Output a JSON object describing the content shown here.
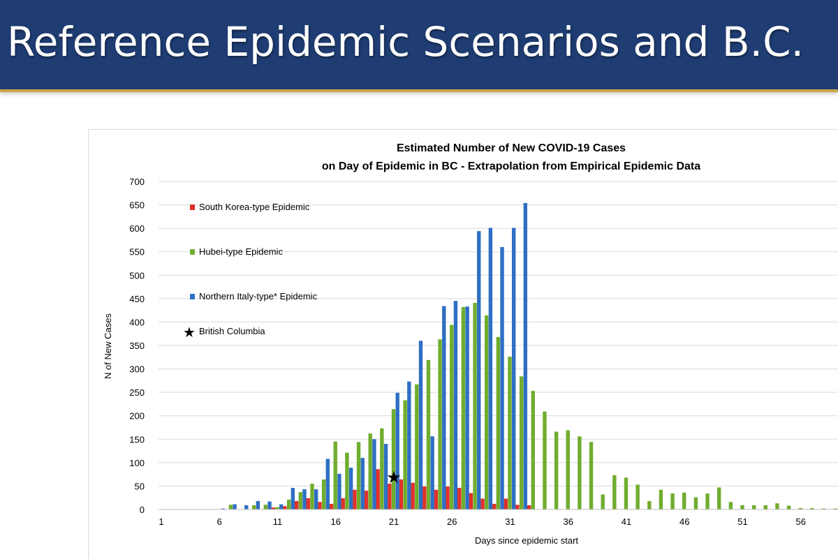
{
  "slide": {
    "title": "Reference Epidemic Scenarios and B.C."
  },
  "colors": {
    "banner": "#1f3d73",
    "banner_accent": "#c9a64a",
    "south_korea": "#e0312b",
    "hubei": "#70ad2e",
    "northern_italy": "#2e6fc4",
    "gridline": "#d9d9d9"
  },
  "chart_data": {
    "type": "bar",
    "title_line1": "Estimated Number of New COVID-19 Cases",
    "title_line2": "on Day of Epidemic in BC  - Extrapolation from Empirical Epidemic Data",
    "xlabel": "Days since epidemic start",
    "ylabel": "N of New Cases",
    "ylim": [
      0,
      700
    ],
    "y_ticks": [
      0,
      50,
      100,
      150,
      200,
      250,
      300,
      350,
      400,
      450,
      500,
      550,
      600,
      650,
      700
    ],
    "x_ticks": [
      "1",
      "6",
      "11",
      "16",
      "21",
      "26",
      "31",
      "36",
      "41",
      "46",
      "51",
      "56"
    ],
    "x_range": [
      1,
      59
    ],
    "grid": true,
    "legend_placement": "top-left",
    "series": [
      {
        "name": "South Korea-type Epidemic",
        "color": "#e0312b",
        "x": [
          11,
          12,
          13,
          14,
          15,
          16,
          17,
          18,
          19,
          20,
          21,
          22,
          23,
          24,
          25,
          26,
          27,
          28,
          29,
          30,
          31,
          32,
          33
        ],
        "values": [
          4,
          7,
          18,
          24,
          16,
          12,
          24,
          42,
          40,
          86,
          55,
          64,
          57,
          49,
          42,
          49,
          46,
          35,
          23,
          12,
          23,
          10,
          9
        ]
      },
      {
        "name": "Hubei-type Epidemic",
        "color": "#70ad2e",
        "x": [
          7,
          9,
          10,
          11,
          12,
          13,
          14,
          15,
          16,
          17,
          18,
          19,
          20,
          21,
          22,
          23,
          24,
          25,
          26,
          27,
          28,
          29,
          30,
          31,
          32,
          33,
          34,
          35,
          36,
          37,
          38,
          39,
          40,
          41,
          42,
          43,
          44,
          45,
          46,
          47,
          48,
          49,
          50,
          51,
          52,
          53,
          54,
          55,
          56,
          57,
          58,
          59
        ],
        "values": [
          10,
          9,
          10,
          5,
          21,
          37,
          55,
          64,
          145,
          121,
          144,
          162,
          173,
          214,
          233,
          267,
          319,
          363,
          394,
          432,
          441,
          414,
          368,
          326,
          284,
          253,
          209,
          166,
          169,
          156,
          144,
          32,
          73,
          68,
          53,
          18,
          42,
          34,
          36,
          26,
          34,
          47,
          16,
          9,
          9,
          9,
          13,
          8,
          3,
          3,
          2,
          2
        ]
      },
      {
        "name": "Northern Italy-type* Epidemic",
        "color": "#2e6fc4",
        "x": [
          6,
          7,
          8,
          9,
          10,
          11,
          12,
          13,
          14,
          15,
          16,
          17,
          18,
          19,
          20,
          21,
          22,
          23,
          24,
          25,
          26,
          27,
          28,
          29,
          30,
          31,
          32
        ],
        "values": [
          2,
          11,
          9,
          18,
          17,
          11,
          46,
          43,
          43,
          108,
          76,
          89,
          110,
          150,
          140,
          249,
          273,
          360,
          156,
          434,
          445,
          433,
          594,
          601,
          560,
          601,
          654
        ]
      }
    ],
    "marker": {
      "name": "British Columbia",
      "symbol": "★",
      "x": 21,
      "y": 70
    }
  }
}
